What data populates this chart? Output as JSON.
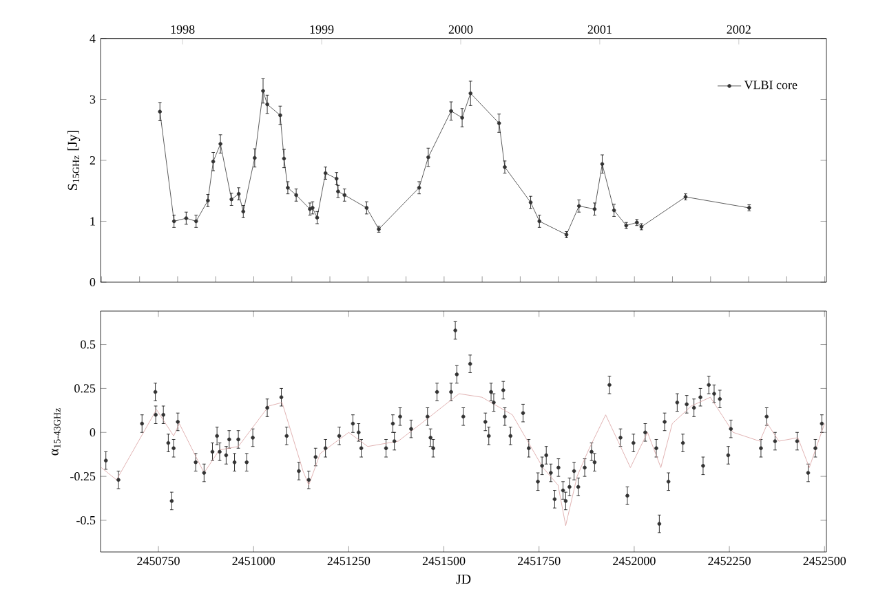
{
  "chart_data": [
    {
      "type": "line",
      "ylabel": "S$_{15GHz}$ [Jy]",
      "xlim": [
        2450598,
        2452505
      ],
      "ylim": [
        0,
        4
      ],
      "yticks": [
        0,
        1,
        2,
        3,
        4
      ],
      "x2lim": [
        1997.41,
        2002.63
      ],
      "x2ticks": [
        1998,
        1999,
        2000,
        2001,
        2002
      ],
      "tick_labels": "y",
      "legend": "top right",
      "marker": "circle",
      "series": [
        {
          "name": "VLBI core",
          "color": "#333333",
          "x": [
            2450754,
            2450791,
            2450823,
            2450849,
            2450880,
            2450894,
            2450913,
            2450942,
            2450961,
            2450973,
            2451003,
            2451025,
            2451036,
            2451070,
            2451080,
            2451090,
            2451112,
            2451148,
            2451155,
            2451167,
            2451189,
            2451218,
            2451222,
            2451239,
            2451297,
            2451329,
            2451435,
            2451459,
            2451519,
            2451548,
            2451570,
            2451645,
            2451660,
            2451728,
            2451751,
            2451822,
            2451855,
            2451896,
            2451916,
            2451947,
            2451979,
            2452007,
            2452019,
            2452135,
            2452302
          ],
          "values": [
            2.8,
            1.0,
            1.05,
            1.0,
            1.34,
            1.98,
            2.27,
            1.36,
            1.45,
            1.16,
            2.04,
            3.14,
            2.92,
            2.74,
            2.03,
            1.55,
            1.43,
            1.2,
            1.22,
            1.06,
            1.79,
            1.7,
            1.49,
            1.43,
            1.22,
            0.87,
            1.55,
            2.05,
            2.81,
            2.7,
            3.1,
            2.61,
            1.89,
            1.31,
            1.0,
            0.78,
            1.25,
            1.2,
            1.94,
            1.18,
            0.93,
            0.98,
            0.91,
            1.4,
            1.22
          ],
          "errors": [
            0.15,
            0.1,
            0.1,
            0.1,
            0.1,
            0.15,
            0.15,
            0.1,
            0.1,
            0.1,
            0.15,
            0.2,
            0.15,
            0.15,
            0.15,
            0.1,
            0.1,
            0.1,
            0.1,
            0.1,
            0.1,
            0.1,
            0.1,
            0.1,
            0.1,
            0.05,
            0.1,
            0.15,
            0.15,
            0.15,
            0.2,
            0.15,
            0.1,
            0.1,
            0.1,
            0.05,
            0.1,
            0.1,
            0.15,
            0.1,
            0.05,
            0.05,
            0.05,
            0.05,
            0.05
          ]
        }
      ]
    },
    {
      "type": "scatter",
      "xlabel": "JD",
      "ylabel": "α$_{15-43GHz}$",
      "xlim": [
        2450598,
        2452505
      ],
      "ylim": [
        -0.68,
        0.69
      ],
      "xticks": [
        2450750,
        2451000,
        2451250,
        2451500,
        2451750,
        2452000,
        2452250,
        2452500
      ],
      "yticks": [
        -0.5,
        -0.25,
        0,
        0.25,
        0.5
      ],
      "marker": "circle",
      "series": [
        {
          "color": "#333333",
          "x": [
            2450612,
            2450645,
            2450707,
            2450742,
            2450743,
            2450763,
            2450776,
            2450785,
            2450790,
            2450801,
            2450848,
            2450870,
            2450892,
            2450904,
            2450911,
            2450928,
            2450936,
            2450950,
            2450960,
            2450982,
            2450998,
            2451036,
            2451073,
            2451087,
            2451119,
            2451145,
            2451163,
            2451189,
            2451225,
            2451261,
            2451276,
            2451283,
            2451348,
            2451366,
            2451370,
            2451385,
            2451414,
            2451457,
            2451465,
            2451472,
            2451482,
            2451519,
            2451530,
            2451534,
            2451551,
            2451569,
            2451609,
            2451618,
            2451624,
            2451631,
            2451656,
            2451660,
            2451675,
            2451708,
            2451723,
            2451747,
            2451758,
            2451769,
            2451781,
            2451791,
            2451801,
            2451813,
            2451820,
            2451830,
            2451842,
            2451853,
            2451870,
            2451888,
            2451896,
            2451935,
            2451964,
            2451982,
            2451998,
            2452029,
            2452058,
            2452066,
            2452080,
            2452090,
            2452113,
            2452128,
            2452138,
            2452157,
            2452174,
            2452181,
            2452196,
            2452210,
            2452225,
            2452247,
            2452254,
            2452333,
            2452348,
            2452370,
            2452428,
            2452457,
            2452476,
            2452493
          ],
          "values": [
            -0.16,
            -0.27,
            0.05,
            0.23,
            0.1,
            0.1,
            -0.06,
            -0.39,
            -0.09,
            0.06,
            -0.17,
            -0.23,
            -0.11,
            -0.02,
            -0.11,
            -0.13,
            -0.04,
            -0.17,
            -0.04,
            -0.17,
            -0.03,
            0.14,
            0.2,
            -0.02,
            -0.22,
            -0.27,
            -0.14,
            -0.09,
            -0.02,
            0.05,
            0.0,
            -0.09,
            -0.09,
            0.05,
            -0.05,
            0.09,
            0.02,
            0.09,
            -0.03,
            -0.09,
            0.23,
            0.23,
            0.58,
            0.33,
            0.09,
            0.39,
            0.06,
            -0.02,
            0.23,
            0.17,
            0.24,
            0.09,
            -0.02,
            0.11,
            -0.09,
            -0.28,
            -0.19,
            -0.13,
            -0.23,
            -0.38,
            -0.2,
            -0.33,
            -0.39,
            -0.31,
            -0.22,
            -0.31,
            -0.2,
            -0.11,
            -0.17,
            0.27,
            -0.03,
            -0.36,
            -0.06,
            0.0,
            -0.09,
            -0.52,
            0.06,
            -0.28,
            0.17,
            -0.06,
            0.16,
            0.14,
            0.2,
            -0.19,
            0.27,
            0.22,
            0.19,
            -0.13,
            0.02,
            -0.09,
            0.09,
            -0.05,
            -0.05,
            -0.23,
            -0.09,
            0.05
          ],
          "errors": [
            0.05,
            0.05,
            0.05,
            0.05,
            0.05,
            0.05,
            0.05,
            0.05,
            0.05,
            0.05,
            0.05,
            0.05,
            0.05,
            0.05,
            0.05,
            0.05,
            0.05,
            0.05,
            0.05,
            0.05,
            0.05,
            0.05,
            0.05,
            0.05,
            0.05,
            0.05,
            0.05,
            0.05,
            0.05,
            0.05,
            0.05,
            0.05,
            0.05,
            0.05,
            0.05,
            0.05,
            0.05,
            0.05,
            0.05,
            0.05,
            0.05,
            0.05,
            0.05,
            0.05,
            0.05,
            0.05,
            0.05,
            0.05,
            0.05,
            0.05,
            0.05,
            0.05,
            0.05,
            0.05,
            0.05,
            0.05,
            0.05,
            0.05,
            0.05,
            0.05,
            0.05,
            0.05,
            0.05,
            0.05,
            0.05,
            0.05,
            0.05,
            0.05,
            0.05,
            0.05,
            0.05,
            0.05,
            0.05,
            0.05,
            0.05,
            0.05,
            0.05,
            0.05,
            0.05,
            0.05,
            0.05,
            0.05,
            0.05,
            0.05,
            0.05,
            0.05,
            0.05,
            0.05,
            0.05,
            0.05,
            0.05,
            0.05,
            0.05,
            0.05,
            0.05,
            0.05
          ]
        },
        {
          "type": "line",
          "color": "#d9a0a0",
          "marker": "none",
          "x": [
            2450600,
            2450640,
            2450745,
            2450790,
            2450805,
            2450870,
            2450910,
            2450960,
            2451040,
            2451075,
            2451130,
            2451145,
            2451175,
            2451250,
            2451300,
            2451380,
            2451440,
            2451540,
            2451600,
            2451680,
            2451720,
            2451760,
            2451800,
            2451820,
            2451850,
            2451880,
            2451925,
            2451990,
            2452035,
            2452070,
            2452100,
            2452150,
            2452200,
            2452260,
            2452330,
            2452350,
            2452380,
            2452430,
            2452460,
            2452500
          ],
          "values": [
            -0.2,
            -0.27,
            0.13,
            -0.02,
            0.05,
            -0.23,
            -0.1,
            -0.08,
            0.15,
            0.17,
            -0.22,
            -0.3,
            -0.12,
            0.0,
            -0.08,
            -0.05,
            0.05,
            0.22,
            0.2,
            0.1,
            -0.05,
            -0.2,
            -0.3,
            -0.53,
            -0.25,
            -0.1,
            0.1,
            -0.2,
            0.0,
            -0.2,
            0.05,
            0.15,
            0.2,
            0.0,
            -0.05,
            0.05,
            -0.05,
            -0.03,
            -0.2,
            0.05
          ]
        }
      ]
    }
  ]
}
